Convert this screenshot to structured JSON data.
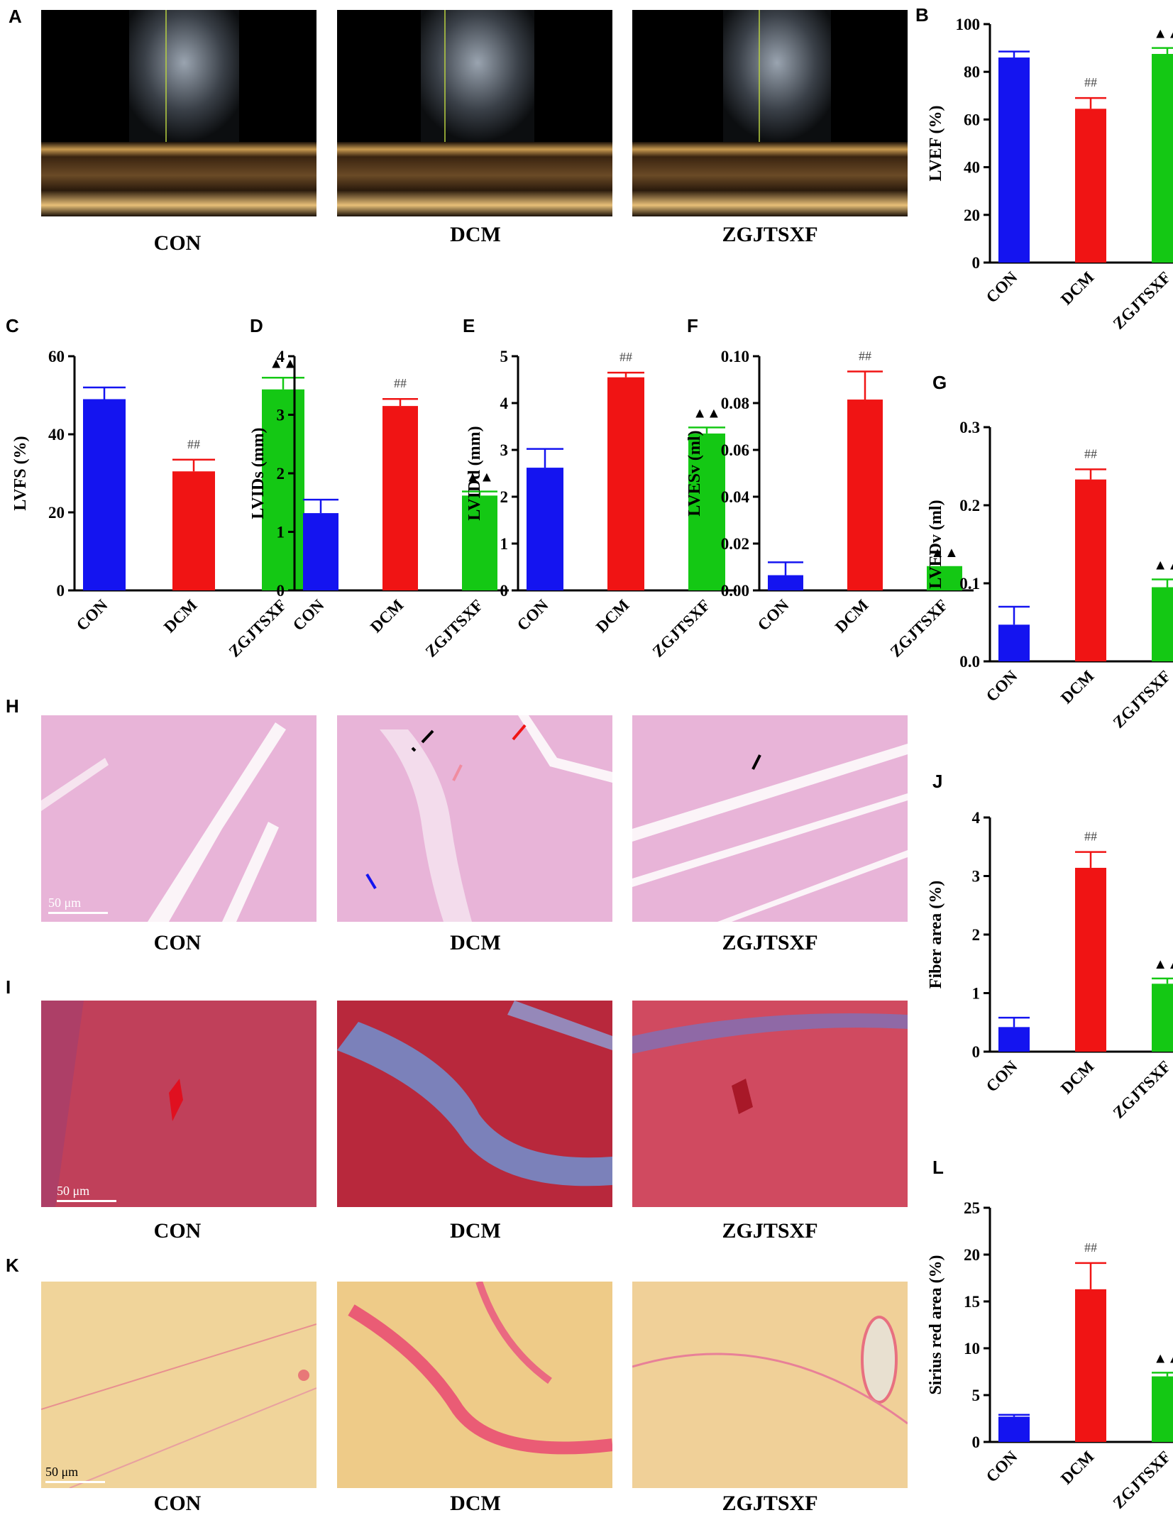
{
  "panels": {
    "A": "A",
    "B": "B",
    "C": "C",
    "D": "D",
    "E": "E",
    "F": "F",
    "G": "G",
    "H": "H",
    "I": "I",
    "J": "J",
    "K": "K",
    "L": "L"
  },
  "groups": [
    "CON",
    "DCM",
    "ZGJTSXF"
  ],
  "scale_bar": "50 μm",
  "colors": {
    "CON": "#1414f0",
    "DCM": "#f01414",
    "ZGJTSXF": "#14c814"
  },
  "markers": {
    "hash": "##",
    "triangle": "▲▲"
  },
  "chart_data": [
    {
      "id": "B",
      "type": "bar",
      "categories": [
        "CON",
        "DCM",
        "ZGJTSXF"
      ],
      "values": [
        86,
        64.5,
        87.5
      ],
      "errors": [
        2.5,
        4.5,
        2.5
      ],
      "ylabel": "LVEF (%)",
      "ylim": [
        0,
        100
      ],
      "ticks": [
        0,
        20,
        40,
        60,
        80,
        100
      ],
      "tick_labels": [
        "0",
        "20",
        "40",
        "60",
        "80",
        "100"
      ]
    },
    {
      "id": "C",
      "type": "bar",
      "categories": [
        "CON",
        "DCM",
        "ZGJTSXF"
      ],
      "values": [
        49,
        30.5,
        51.5
      ],
      "errors": [
        3,
        3,
        3
      ],
      "ylabel": "LVFS (%)",
      "ylim": [
        0,
        60
      ],
      "ticks": [
        0,
        20,
        40,
        60
      ],
      "tick_labels": [
        "0",
        "20",
        "40",
        "60"
      ]
    },
    {
      "id": "D",
      "type": "bar",
      "categories": [
        "CON",
        "DCM",
        "ZGJTSXF"
      ],
      "values": [
        1.32,
        3.15,
        1.62
      ],
      "errors": [
        0.23,
        0.12,
        0.07
      ],
      "ylabel": "LVIDs (mm)",
      "ylim": [
        0,
        4
      ],
      "ticks": [
        0,
        1,
        2,
        3,
        4
      ],
      "tick_labels": [
        "0",
        "1",
        "2",
        "3",
        "4"
      ]
    },
    {
      "id": "E",
      "type": "bar",
      "categories": [
        "CON",
        "DCM",
        "ZGJTSXF"
      ],
      "values": [
        2.62,
        4.55,
        3.35
      ],
      "errors": [
        0.4,
        0.1,
        0.13
      ],
      "ylabel": "LVIDd (mm)",
      "ylim": [
        0,
        5
      ],
      "ticks": [
        0,
        1,
        2,
        3,
        4,
        5
      ],
      "tick_labels": [
        "0",
        "1",
        "2",
        "3",
        "4",
        "5"
      ]
    },
    {
      "id": "F",
      "type": "bar",
      "categories": [
        "CON",
        "DCM",
        "ZGJTSXF"
      ],
      "values": [
        0.0065,
        0.0815,
        0.0098
      ],
      "errors": [
        0.0055,
        0.012,
        0.0002
      ],
      "ylabel": "LVESv (ml)",
      "ylim": [
        0,
        0.1
      ],
      "ticks": [
        0,
        0.02,
        0.04,
        0.06,
        0.08,
        0.1
      ],
      "tick_labels": [
        "0.00",
        "0.02",
        "0.04",
        "0.06",
        "0.08",
        "0.10"
      ]
    },
    {
      "id": "G",
      "type": "bar",
      "categories": [
        "CON",
        "DCM",
        "ZGJTSXF"
      ],
      "values": [
        0.047,
        0.233,
        0.095
      ],
      "errors": [
        0.023,
        0.013,
        0.01
      ],
      "ylabel": "LVEDv (ml)",
      "ylim": [
        0,
        0.3
      ],
      "ticks": [
        0,
        0.1,
        0.2,
        0.3
      ],
      "tick_labels": [
        "0.0",
        "0.1",
        "0.2",
        "0.3"
      ]
    },
    {
      "id": "J",
      "type": "bar",
      "categories": [
        "CON",
        "DCM",
        "ZGJTSXF"
      ],
      "values": [
        0.42,
        3.14,
        1.16
      ],
      "errors": [
        0.16,
        0.27,
        0.09
      ],
      "ylabel": "Fiber area (%)",
      "ylim": [
        0,
        4
      ],
      "ticks": [
        0,
        1,
        2,
        3,
        4
      ],
      "tick_labels": [
        "0",
        "1",
        "2",
        "3",
        "4"
      ]
    },
    {
      "id": "L",
      "type": "bar",
      "categories": [
        "CON",
        "DCM",
        "ZGJTSXF"
      ],
      "values": [
        2.7,
        16.3,
        7.0
      ],
      "errors": [
        0.2,
        2.8,
        0.4
      ],
      "ylabel": "Sirius red area (%)",
      "ylim": [
        0,
        25
      ],
      "ticks": [
        0,
        5,
        10,
        15,
        20,
        25
      ],
      "tick_labels": [
        "0",
        "5",
        "10",
        "15",
        "20",
        "25"
      ]
    }
  ]
}
